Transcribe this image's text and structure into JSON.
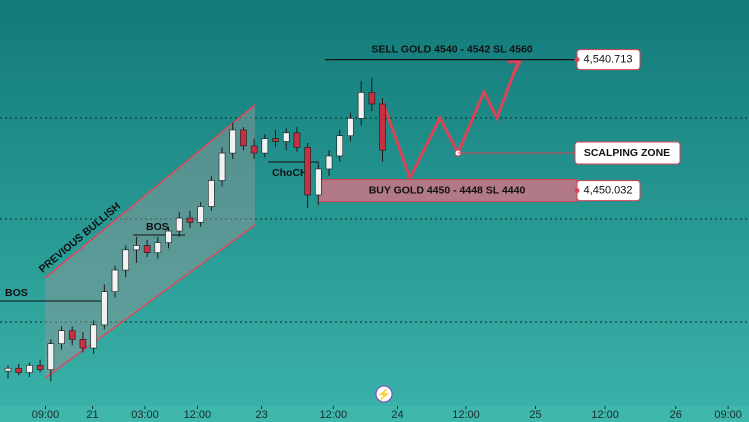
{
  "chart_data": {
    "type": "candlestick",
    "open": [
      4325,
      4327,
      4324,
      4329,
      4326,
      4344,
      4353,
      4347,
      4341,
      4357,
      4380,
      4395,
      4409,
      4412,
      4407,
      4414,
      4422,
      4431,
      4428,
      4439,
      4457,
      4476,
      4492,
      4481,
      4476,
      4486,
      4484,
      4490,
      4480,
      4447,
      4465,
      4474,
      4488,
      4500,
      4518,
      4510
    ],
    "high": [
      4329,
      4330,
      4331,
      4333,
      4347,
      4356,
      4356,
      4352,
      4360,
      4385,
      4398,
      4412,
      4418,
      4416,
      4418,
      4425,
      4435,
      4436,
      4442,
      4460,
      4480,
      4497,
      4494,
      4486,
      4489,
      4492,
      4493,
      4494,
      4483,
      4470,
      4478,
      4492,
      4504,
      4526,
      4528,
      4514
    ],
    "low": [
      4320,
      4322,
      4321,
      4324,
      4318,
      4340,
      4343,
      4338,
      4337,
      4354,
      4376,
      4390,
      4400,
      4404,
      4403,
      4410,
      4418,
      4424,
      4425,
      4436,
      4453,
      4472,
      4478,
      4472,
      4473,
      4480,
      4478,
      4477,
      4438,
      4440,
      4460,
      4470,
      4484,
      4495,
      4505,
      4470
    ],
    "close": [
      4327,
      4324,
      4329,
      4326,
      4344,
      4353,
      4347,
      4341,
      4357,
      4380,
      4395,
      4409,
      4412,
      4407,
      4414,
      4422,
      4431,
      4428,
      4439,
      4457,
      4476,
      4492,
      4481,
      4476,
      4486,
      4484,
      4490,
      4480,
      4447,
      4465,
      4474,
      4488,
      4500,
      4518,
      4510,
      4478
    ],
    "up_color": "#f2f2f2",
    "down_color": "#c8303f",
    "xlim": [
      -0.75,
      69.25
    ],
    "xticks": [
      {
        "value": 3.5,
        "label": "09:00"
      },
      {
        "value": 7.9,
        "label": "21"
      },
      {
        "value": 12.8,
        "label": "03:00"
      },
      {
        "value": 17.7,
        "label": "12:00"
      },
      {
        "value": 23.7,
        "label": "23"
      },
      {
        "value": 30.4,
        "label": "12:00"
      },
      {
        "value": 36.4,
        "label": "24"
      },
      {
        "value": 42.8,
        "label": "12:00"
      },
      {
        "value": 49.3,
        "label": "25"
      },
      {
        "value": 55.8,
        "label": "12:00"
      },
      {
        "value": 62.4,
        "label": "26"
      },
      {
        "value": 67.3,
        "label": "09:00"
      }
    ],
    "ylim": [
      4305,
      4582
    ],
    "price_labels": [
      {
        "value": 4540.713,
        "label": "4,540.713"
      },
      {
        "value": 4450.032,
        "label": "4,450.032"
      }
    ],
    "annotations": {
      "sell": "SELL GOLD 4540 - 4542 SL 4560",
      "buy": "BUY GOLD 4450 - 4448 SL 4440",
      "scalping": "SCALPING ZONE",
      "choch": "ChoCH",
      "bos_1": "BOS",
      "bos_2": "BOS",
      "trend": "PREVIOUS BULLISH"
    }
  }
}
